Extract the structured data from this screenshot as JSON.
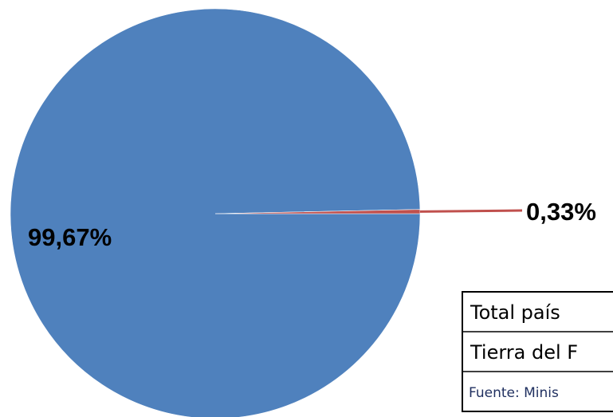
{
  "chart_data": {
    "type": "pie",
    "categories": [
      "Total país",
      "Tierra del F"
    ],
    "values": [
      99.67,
      0.33
    ],
    "value_labels": [
      "99,67%",
      "0,33%"
    ],
    "colors": [
      "#4f81bd",
      "#c0504d"
    ],
    "source": "Fuente: Minis"
  }
}
